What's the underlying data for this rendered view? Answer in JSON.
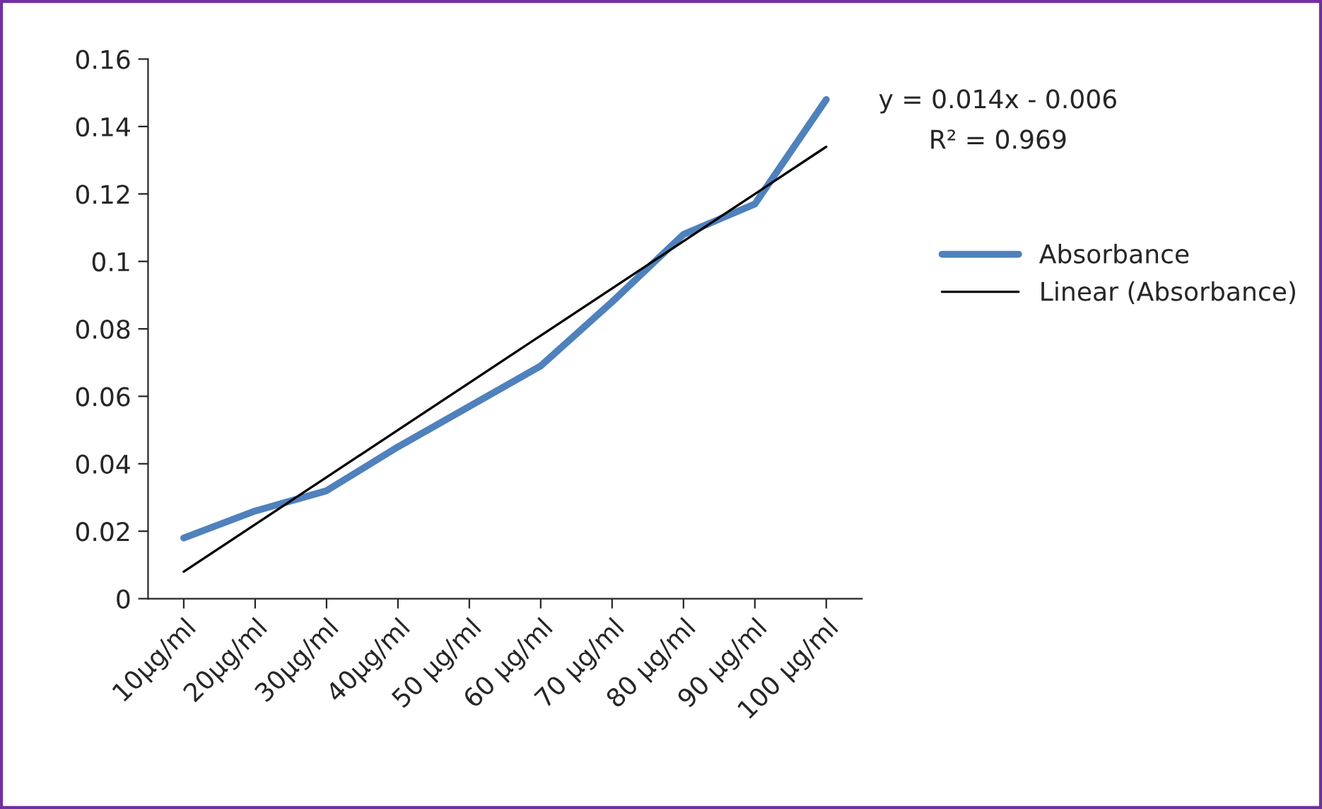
{
  "chart_data": {
    "type": "line",
    "categories": [
      "10µg/ml",
      "20µg/ml",
      "30µg/ml",
      "40µg/ml",
      "50 µg/ml",
      "60 µg/ml",
      "70 µg/ml",
      "80 µg/ml",
      "90 µg/ml",
      "100 µg/ml"
    ],
    "series": [
      {
        "name": "Absorbance",
        "color": "#4f81bd",
        "values": [
          0.018,
          0.026,
          0.032,
          0.045,
          0.057,
          0.069,
          0.088,
          0.108,
          0.117,
          0.148
        ]
      },
      {
        "name": "Linear (Absorbance)",
        "color": "#000000",
        "values": [
          0.008,
          0.022,
          0.036,
          0.05,
          0.064,
          0.078,
          0.092,
          0.106,
          0.12,
          0.134
        ]
      }
    ],
    "ylim": [
      0,
      0.16
    ],
    "yticks": [
      0,
      0.02,
      0.04,
      0.06,
      0.08,
      0.1,
      0.12,
      0.14,
      0.16
    ],
    "annotations": [
      "y = 0.014x - 0.006",
      "R² = 0.969"
    ],
    "legend": "right",
    "grid": false
  }
}
